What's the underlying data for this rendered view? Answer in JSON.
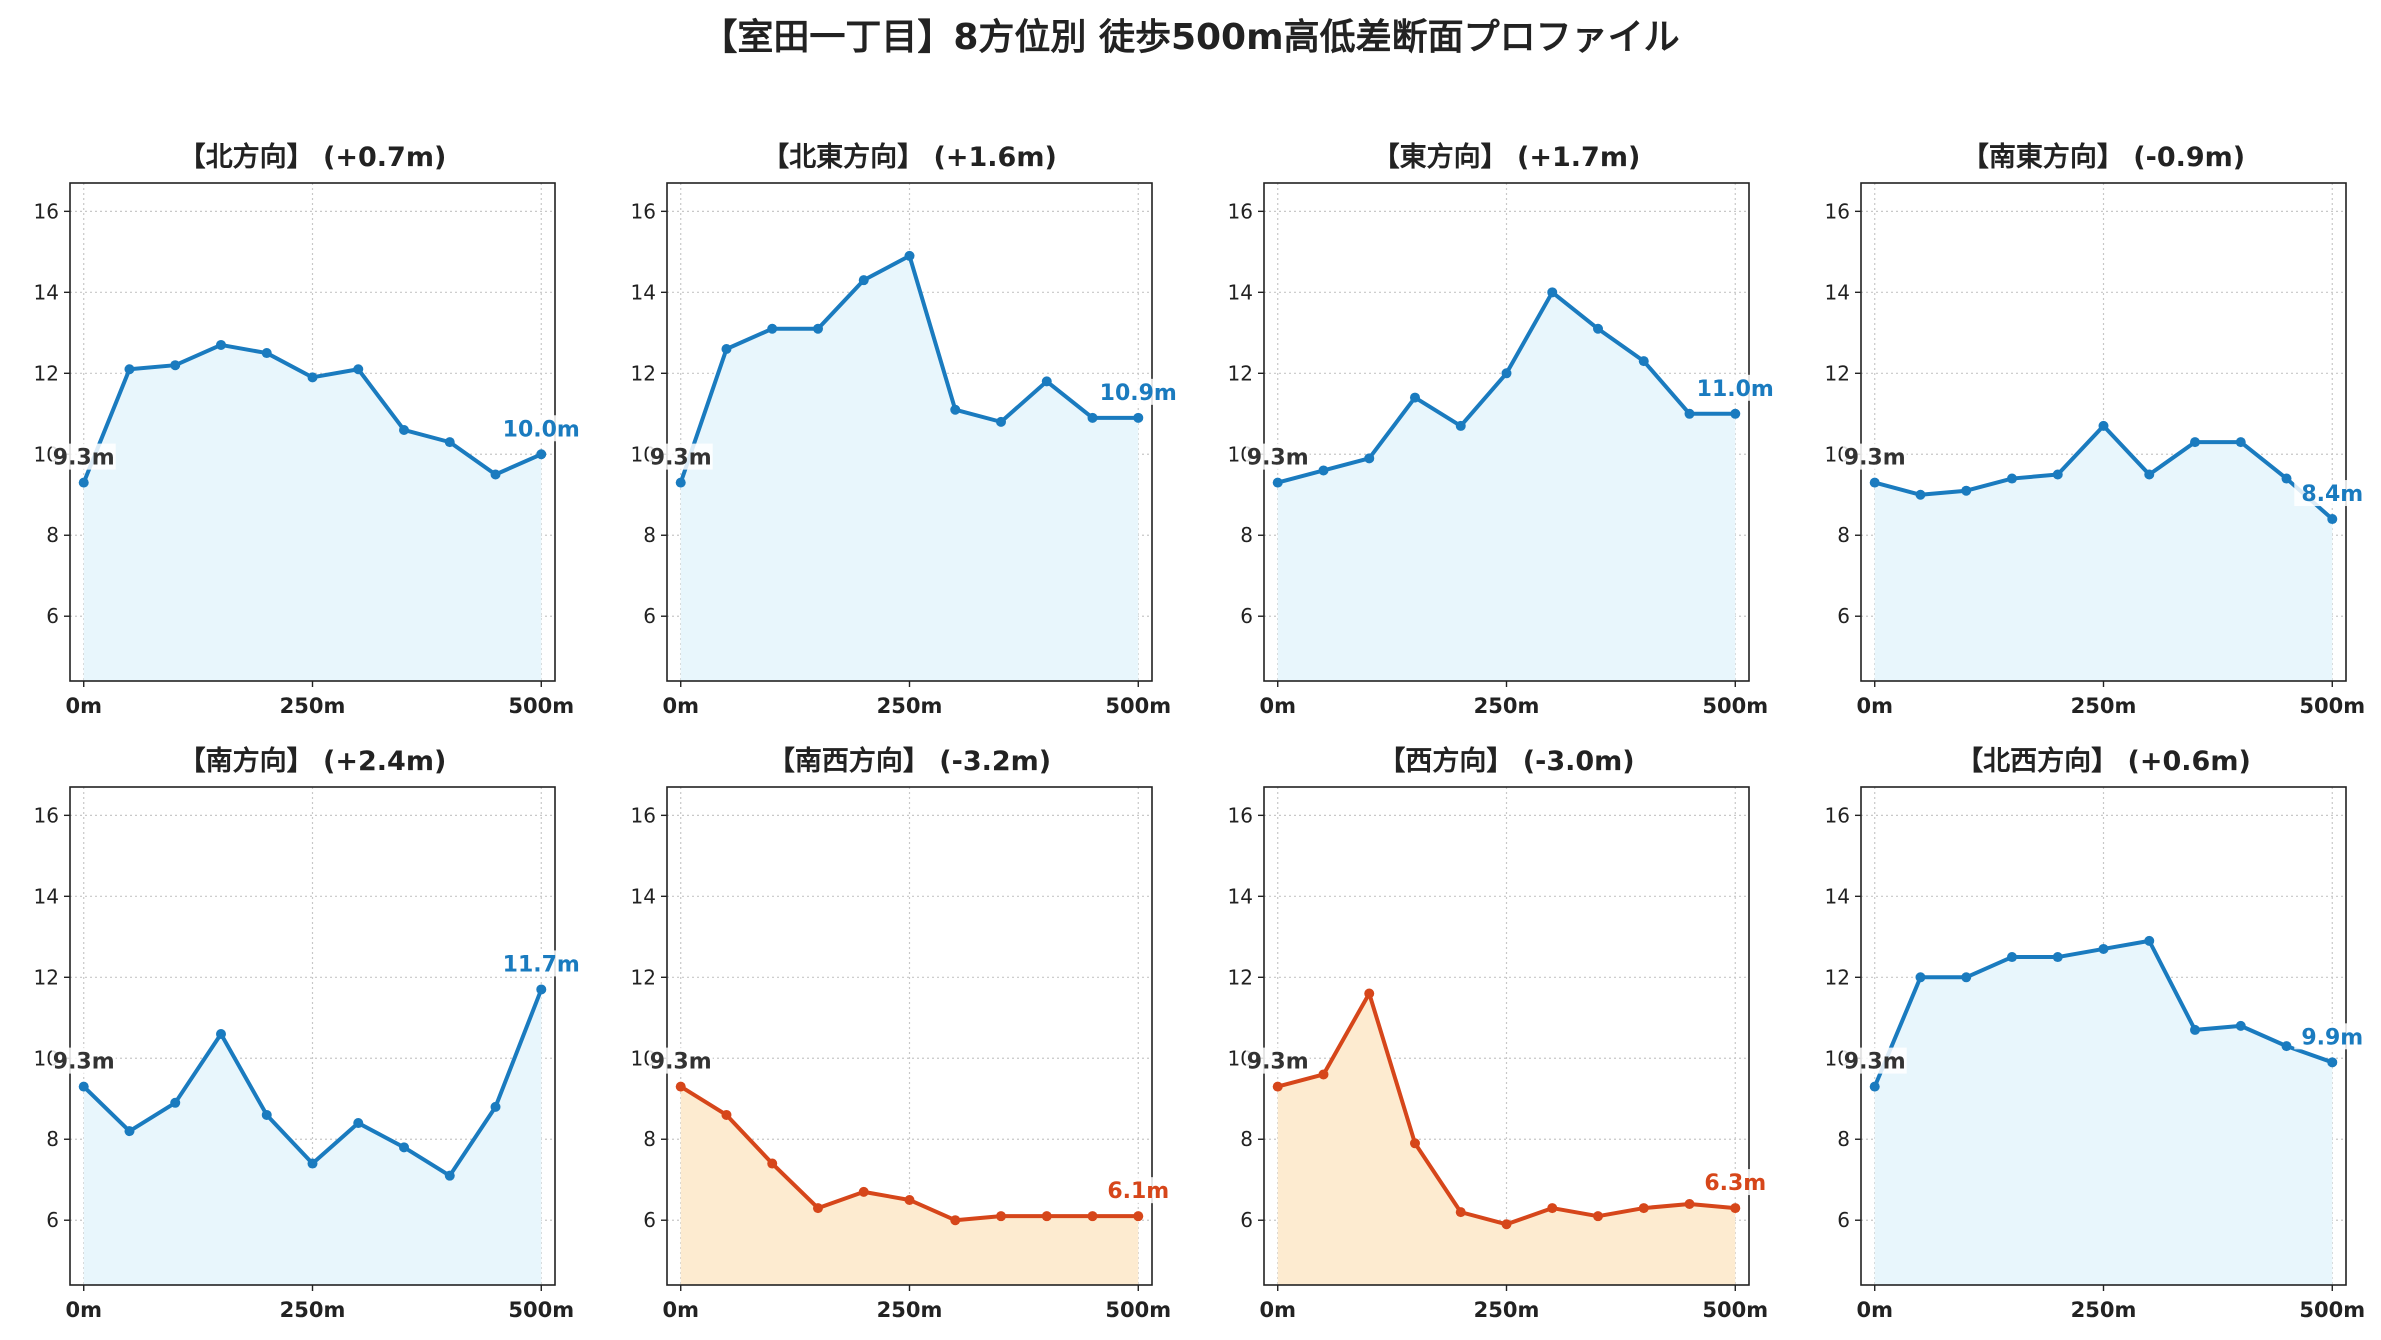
{
  "title": "【室田一丁目】8方位別 徒歩500m高低差断面プロファイル",
  "colors": {
    "up_line": "#1a7bbf",
    "up_fill": "#e8f6fc",
    "down_line": "#d6461a",
    "down_fill": "#fdebd0",
    "grid": "#c8c8c8",
    "axis": "#222222",
    "start_label": "#333333"
  },
  "x_tick_labels": [
    "0m",
    "250m",
    "500m"
  ],
  "x_ticks": [
    0,
    250,
    500
  ],
  "y_ticks": [
    6,
    8,
    10,
    12,
    14,
    16
  ],
  "xlim": [
    -15,
    515
  ],
  "ylim": [
    4.4,
    16.7
  ],
  "chart_data": [
    {
      "type": "area",
      "title": "【北方向】 (+0.7m)",
      "trend": "up",
      "x": [
        0,
        50,
        100,
        150,
        200,
        250,
        300,
        350,
        400,
        450,
        500
      ],
      "values": [
        9.3,
        12.1,
        12.2,
        12.7,
        12.5,
        11.9,
        12.1,
        10.6,
        10.3,
        9.5,
        10.0
      ],
      "start_label": "9.3m",
      "end_label": "10.0m"
    },
    {
      "type": "area",
      "title": "【北東方向】 (+1.6m)",
      "trend": "up",
      "x": [
        0,
        50,
        100,
        150,
        200,
        250,
        300,
        350,
        400,
        450,
        500
      ],
      "values": [
        9.3,
        12.6,
        13.1,
        13.1,
        14.3,
        14.9,
        11.1,
        10.8,
        11.8,
        10.9,
        10.9
      ],
      "start_label": "9.3m",
      "end_label": "10.9m"
    },
    {
      "type": "area",
      "title": "【東方向】 (+1.7m)",
      "trend": "up",
      "x": [
        0,
        50,
        100,
        150,
        200,
        250,
        300,
        350,
        400,
        450,
        500
      ],
      "values": [
        9.3,
        9.6,
        9.9,
        11.4,
        10.7,
        12.0,
        14.0,
        13.1,
        12.3,
        11.0,
        11.0
      ],
      "start_label": "9.3m",
      "end_label": "11.0m"
    },
    {
      "type": "area",
      "title": "【南東方向】 (-0.9m)",
      "trend": "up",
      "x": [
        0,
        50,
        100,
        150,
        200,
        250,
        300,
        350,
        400,
        450,
        500
      ],
      "values": [
        9.3,
        9.0,
        9.1,
        9.4,
        9.5,
        10.7,
        9.5,
        10.3,
        10.3,
        9.4,
        8.4
      ],
      "start_label": "9.3m",
      "end_label": "8.4m"
    },
    {
      "type": "area",
      "title": "【南方向】 (+2.4m)",
      "trend": "up",
      "x": [
        0,
        50,
        100,
        150,
        200,
        250,
        300,
        350,
        400,
        450,
        500
      ],
      "values": [
        9.3,
        8.2,
        8.9,
        10.6,
        8.6,
        7.4,
        8.4,
        7.8,
        7.1,
        8.8,
        11.7
      ],
      "start_label": "9.3m",
      "end_label": "11.7m"
    },
    {
      "type": "area",
      "title": "【南西方向】 (-3.2m)",
      "trend": "down",
      "x": [
        0,
        50,
        100,
        150,
        200,
        250,
        300,
        350,
        400,
        450,
        500
      ],
      "values": [
        9.3,
        8.6,
        7.4,
        6.3,
        6.7,
        6.5,
        6.0,
        6.1,
        6.1,
        6.1,
        6.1
      ],
      "start_label": "9.3m",
      "end_label": "6.1m"
    },
    {
      "type": "area",
      "title": "【西方向】 (-3.0m)",
      "trend": "down",
      "x": [
        0,
        50,
        100,
        150,
        200,
        250,
        300,
        350,
        400,
        450,
        500
      ],
      "values": [
        9.3,
        9.6,
        11.6,
        7.9,
        6.2,
        5.9,
        6.3,
        6.1,
        6.3,
        6.4,
        6.3
      ],
      "start_label": "9.3m",
      "end_label": "6.3m"
    },
    {
      "type": "area",
      "title": "【北西方向】 (+0.6m)",
      "trend": "up",
      "x": [
        0,
        50,
        100,
        150,
        200,
        250,
        300,
        350,
        400,
        450,
        500
      ],
      "values": [
        9.3,
        12.0,
        12.0,
        12.5,
        12.5,
        12.7,
        12.9,
        10.7,
        10.8,
        10.3,
        9.9
      ],
      "start_label": "9.3m",
      "end_label": "9.9m"
    }
  ]
}
